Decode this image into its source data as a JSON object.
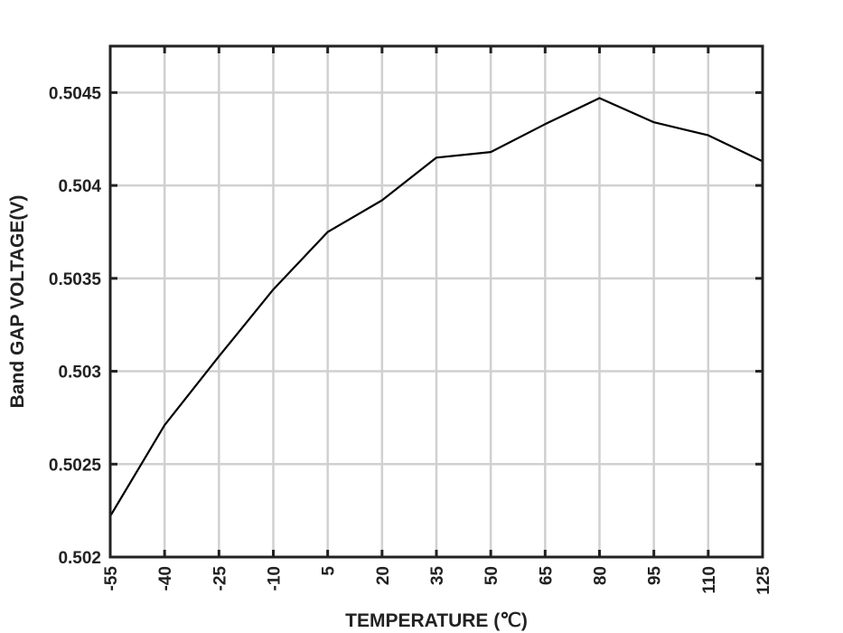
{
  "chart_data": {
    "type": "line",
    "title": "",
    "xlabel": "TEMPERATURE (℃)",
    "ylabel": "Band GAP VOLTAGE(V)",
    "x": [
      -55,
      -40,
      -25,
      -10,
      5,
      20,
      35,
      50,
      65,
      80,
      95,
      110,
      125
    ],
    "xticks": [
      "-55",
      "-40",
      "-25",
      "-10",
      "5",
      "20",
      "35",
      "50",
      "65",
      "80",
      "95",
      "110",
      "125"
    ],
    "yticks": [
      "0.502",
      "0.5025",
      "0.503",
      "0.5035",
      "0.504",
      "0.5045"
    ],
    "ylim": [
      0.502,
      0.50475
    ],
    "xlim": [
      -55,
      125
    ],
    "grid": true,
    "series": [
      {
        "values": [
          0.50222,
          0.50271,
          0.50308,
          0.50344,
          0.50375,
          0.50392,
          0.50415,
          0.50418,
          0.50433,
          0.50447,
          0.50434,
          0.50427,
          0.50413
        ]
      }
    ],
    "colors": {
      "line": "#000000",
      "grid": "#d0d0d0",
      "axis": "#222222"
    }
  }
}
